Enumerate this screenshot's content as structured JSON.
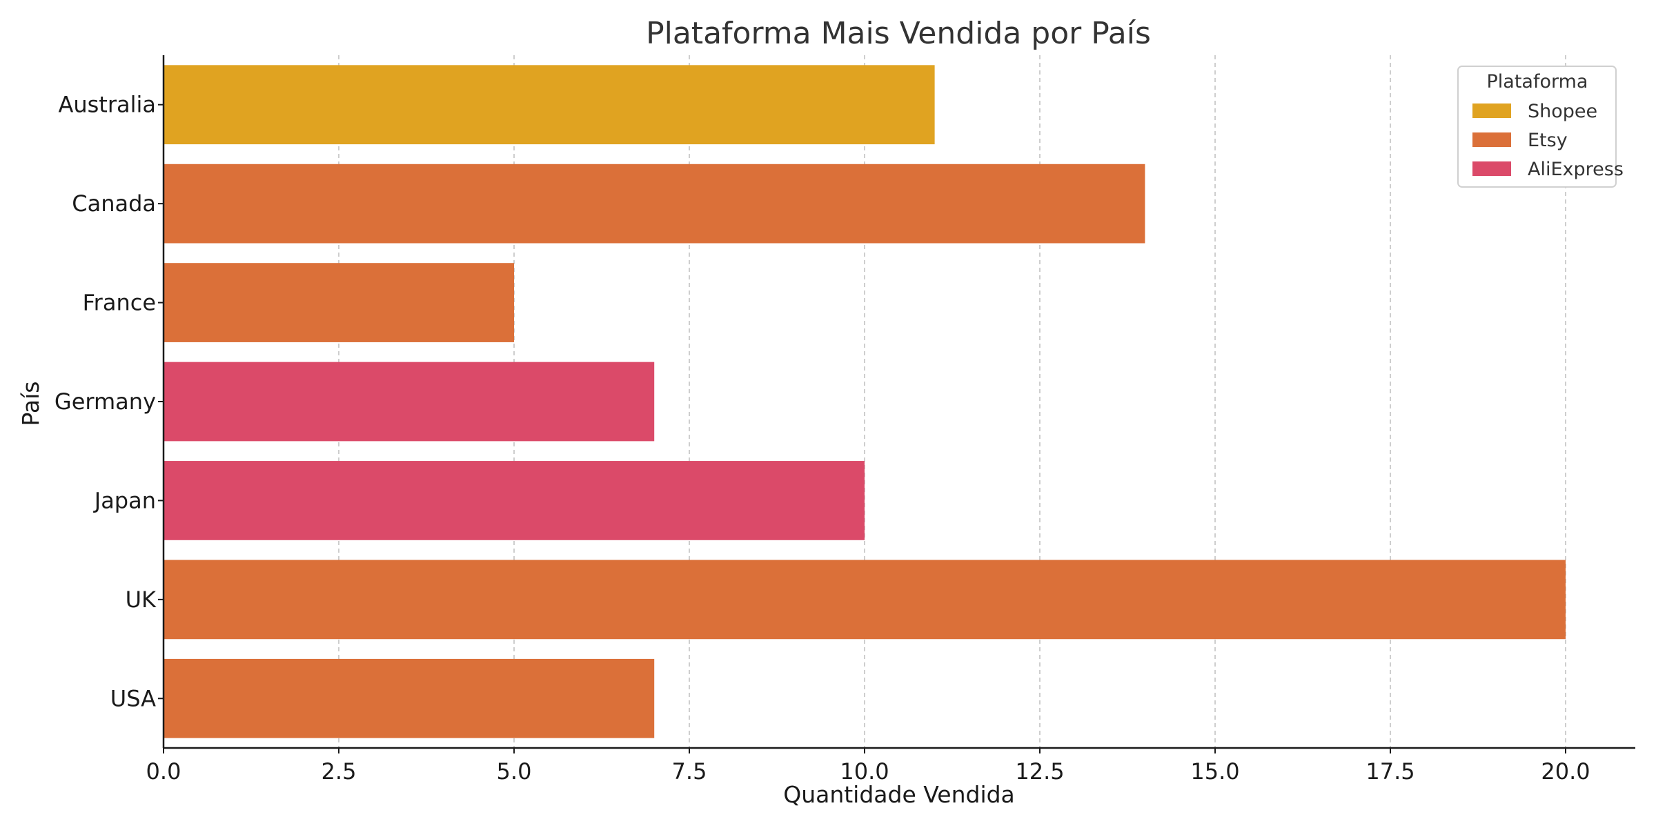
{
  "chart_data": {
    "type": "bar",
    "orientation": "horizontal",
    "title": "Plataforma Mais Vendida por País",
    "xlabel": "Quantidade Vendida",
    "ylabel": "País",
    "xlim": [
      0,
      21
    ],
    "x_ticks": [
      "0.0",
      "2.5",
      "5.0",
      "7.5",
      "10.0",
      "12.5",
      "15.0",
      "17.5",
      "20.0"
    ],
    "x_tick_values": [
      0,
      2.5,
      5,
      7.5,
      10,
      12.5,
      15,
      17.5,
      20
    ],
    "grid": "vertical dashed",
    "categories": [
      "Australia",
      "Canada",
      "France",
      "Germany",
      "Japan",
      "UK",
      "USA"
    ],
    "values": [
      11,
      14,
      5,
      7,
      10,
      20,
      7
    ],
    "platforms": [
      "Shopee",
      "Etsy",
      "Etsy",
      "AliExpress",
      "AliExpress",
      "Etsy",
      "Etsy"
    ],
    "legend": {
      "title": "Plataforma",
      "position": "top-right",
      "entries": [
        {
          "name": "Shopee",
          "color": "#e0a321"
        },
        {
          "name": "Etsy",
          "color": "#db7039"
        },
        {
          "name": "AliExpress",
          "color": "#db4a69"
        }
      ]
    }
  }
}
